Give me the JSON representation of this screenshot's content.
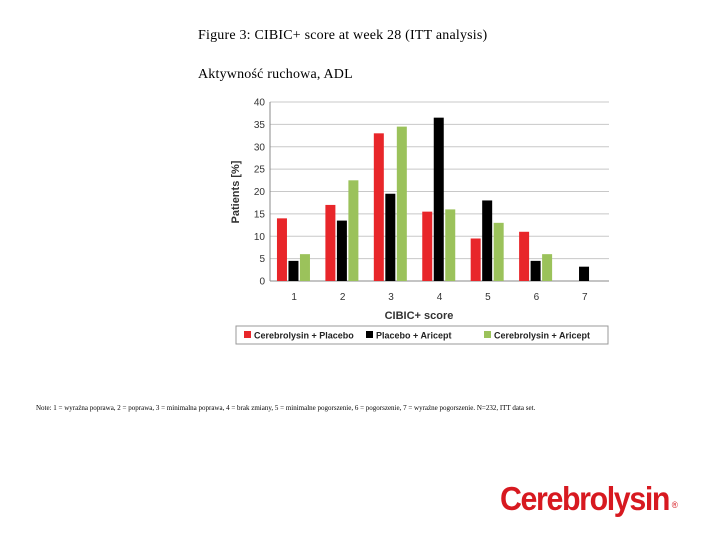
{
  "header": {
    "title": "Figure 3: CIBIC+ score at week 28 (ITT analysis)",
    "subtitle": "Aktywność ruchowa, ADL"
  },
  "note": "Note: 1 = wyraźna poprawa, 2 = poprawa, 3 = minimalna poprawa, 4 = brak zmiany, 5 = minimalne pogorszenie, 6 = pogorszenie, 7 = wyraźne pogorszenie. N=232, ITT data set.",
  "logo": {
    "text": "Cerebrolysin",
    "reg": "®"
  },
  "colors": {
    "cerebrolysin_placebo": "#e8262a",
    "placebo_aricept": "#000000",
    "cerebrolysin_aricept": "#9bc25b"
  },
  "chart_data": {
    "type": "bar",
    "title": "",
    "xlabel": "CIBIC+ score",
    "ylabel": "Patients [%]",
    "ylim": [
      0,
      40
    ],
    "yticks": [
      0,
      5,
      10,
      15,
      20,
      25,
      30,
      35,
      40
    ],
    "grid": true,
    "legend_position": "bottom",
    "categories": [
      "1",
      "2",
      "3",
      "4",
      "5",
      "6",
      "7"
    ],
    "series": [
      {
        "name": "Cerebrolysin + Placebo",
        "color": "#e8262a",
        "values": [
          14,
          17,
          33,
          15.5,
          9.5,
          11,
          0
        ]
      },
      {
        "name": "Placebo + Aricept",
        "color": "#000000",
        "values": [
          4.5,
          13.5,
          19.5,
          36.5,
          18,
          4.5,
          3.2
        ]
      },
      {
        "name": "Cerebrolysin + Aricept",
        "color": "#9bc25b",
        "values": [
          6,
          22.5,
          34.5,
          16,
          13,
          6,
          0
        ]
      }
    ]
  }
}
